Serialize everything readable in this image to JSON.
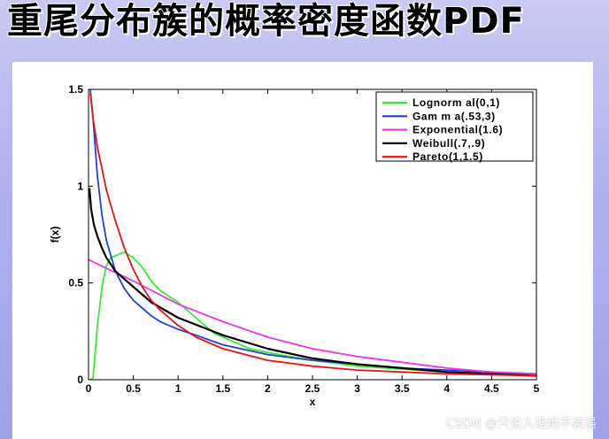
{
  "slide": {
    "title": "重尾分布簇的概率密度函数PDF",
    "watermark": "CSDN @只说人话绝不装逼"
  },
  "chart_data": {
    "type": "line",
    "xlabel": "x",
    "ylabel": "f(x)",
    "xlim": [
      0,
      5
    ],
    "ylim": [
      0,
      1.5
    ],
    "x_ticks": [
      "0",
      "0.5",
      "1",
      "1.5",
      "2",
      "2.5",
      "3",
      "3.5",
      "4",
      "4.5",
      "5"
    ],
    "y_ticks": [
      "0",
      "0.5",
      "1",
      "1.5"
    ],
    "grid": false,
    "legend_position": "top-right",
    "series": [
      {
        "name": "Lognorm al(0,1)",
        "color": "#33ee33",
        "x": [
          0.02,
          0.05,
          0.1,
          0.15,
          0.2,
          0.25,
          0.3,
          0.35,
          0.4,
          0.5,
          0.6,
          0.7,
          0.8,
          0.9,
          1.0,
          1.2,
          1.4,
          1.6,
          1.8,
          2.0,
          2.5,
          3.0,
          3.5,
          4.0,
          4.5,
          5.0
        ],
        "values": [
          0.0,
          0.01,
          0.28,
          0.48,
          0.59,
          0.63,
          0.64,
          0.65,
          0.66,
          0.63,
          0.58,
          0.51,
          0.46,
          0.43,
          0.4,
          0.32,
          0.24,
          0.2,
          0.16,
          0.14,
          0.1,
          0.07,
          0.055,
          0.04,
          0.03,
          0.025
        ]
      },
      {
        "name": "Gam m a(.53,3)",
        "color": "#1f3fe0",
        "x": [
          0.02,
          0.05,
          0.1,
          0.15,
          0.2,
          0.3,
          0.4,
          0.5,
          0.6,
          0.7,
          0.8,
          1.0,
          1.2,
          1.5,
          2.0,
          2.5,
          3.0,
          3.5,
          4.0,
          4.5,
          5.0
        ],
        "values": [
          1.5,
          1.35,
          1.05,
          0.85,
          0.72,
          0.56,
          0.47,
          0.41,
          0.37,
          0.33,
          0.3,
          0.26,
          0.23,
          0.18,
          0.13,
          0.1,
          0.08,
          0.06,
          0.05,
          0.04,
          0.03
        ]
      },
      {
        "name": "Exponential(1.6)",
        "color": "#ee33ee",
        "x": [
          0,
          0.5,
          1.0,
          1.5,
          2.0,
          2.5,
          3.0,
          3.5,
          4.0,
          4.5,
          5.0
        ],
        "values": [
          0.62,
          0.51,
          0.39,
          0.3,
          0.22,
          0.16,
          0.12,
          0.09,
          0.06,
          0.04,
          0.03
        ]
      },
      {
        "name": "Weibull(.7,.9)",
        "color": "#000000",
        "x": [
          0.01,
          0.03,
          0.06,
          0.1,
          0.15,
          0.2,
          0.3,
          0.4,
          0.5,
          0.7,
          1.0,
          1.5,
          2.0,
          2.5,
          3.0,
          3.5,
          4.0,
          4.5,
          5.0
        ],
        "values": [
          0.99,
          0.88,
          0.8,
          0.74,
          0.68,
          0.63,
          0.56,
          0.52,
          0.48,
          0.4,
          0.32,
          0.23,
          0.16,
          0.11,
          0.08,
          0.06,
          0.04,
          0.03,
          0.02
        ]
      },
      {
        "name": "Pareto(1,1.5)",
        "color": "#ee1111",
        "x": [
          0.02,
          0.05,
          0.1,
          0.15,
          0.2,
          0.3,
          0.4,
          0.5,
          0.6,
          0.7,
          0.8,
          1.0,
          1.2,
          1.5,
          2.0,
          2.5,
          3.0,
          3.5,
          4.0,
          4.5,
          5.0
        ],
        "values": [
          1.48,
          1.35,
          1.2,
          1.09,
          0.98,
          0.82,
          0.68,
          0.57,
          0.48,
          0.41,
          0.36,
          0.28,
          0.22,
          0.16,
          0.1,
          0.07,
          0.05,
          0.04,
          0.03,
          0.025,
          0.02
        ]
      }
    ]
  }
}
